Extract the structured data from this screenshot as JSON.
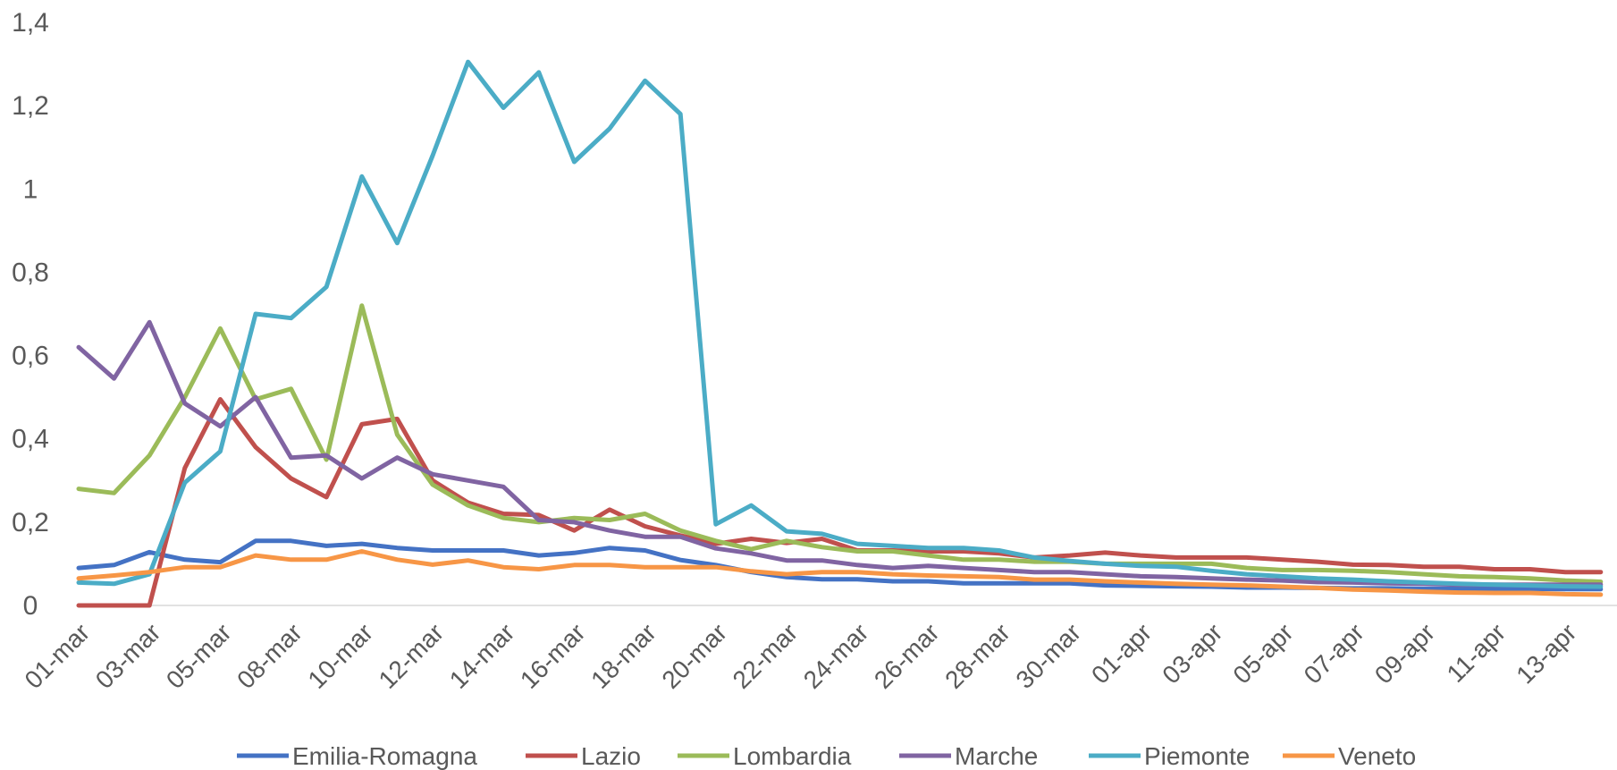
{
  "chart_data": {
    "type": "line",
    "title": "",
    "xlabel": "",
    "ylabel": "",
    "ylim": [
      0,
      1.4
    ],
    "yticks": [
      "0",
      "0,2",
      "0,4",
      "0,6",
      "0,8",
      "1",
      "1,2",
      "1,4"
    ],
    "grid": false,
    "legend_position": "bottom",
    "x": [
      "01-mar",
      "02-mar",
      "03-mar",
      "04-mar",
      "05-mar",
      "06-mar",
      "08-mar",
      "09-mar",
      "10-mar",
      "11-mar",
      "12-mar",
      "13-mar",
      "14-mar",
      "15-mar",
      "16-mar",
      "17-mar",
      "18-mar",
      "19-mar",
      "20-mar",
      "21-mar",
      "22-mar",
      "23-mar",
      "24-mar",
      "25-mar",
      "26-mar",
      "27-mar",
      "28-mar",
      "29-mar",
      "30-mar",
      "31-mar",
      "01-apr",
      "02-apr",
      "03-apr",
      "04-apr",
      "05-apr",
      "06-apr",
      "07-apr",
      "08-apr",
      "09-apr",
      "10-apr",
      "11-apr",
      "12-apr",
      "13-apr",
      "14-apr"
    ],
    "x_tick_labels": [
      "01-mar",
      "03-mar",
      "05-mar",
      "08-mar",
      "10-mar",
      "12-mar",
      "14-mar",
      "16-mar",
      "18-mar",
      "20-mar",
      "22-mar",
      "24-mar",
      "26-mar",
      "28-mar",
      "30-mar",
      "01-apr",
      "03-apr",
      "05-apr",
      "07-apr",
      "09-apr",
      "11-apr",
      "13-apr"
    ],
    "series": [
      {
        "name": "Emilia-Romagna",
        "color": "#4472C4",
        "values": [
          0.09,
          0.097,
          0.128,
          0.11,
          0.104,
          0.155,
          0.155,
          0.143,
          0.148,
          0.138,
          0.132,
          0.132,
          0.132,
          0.12,
          0.126,
          0.138,
          0.132,
          0.109,
          0.097,
          0.08,
          0.068,
          0.063,
          0.063,
          0.058,
          0.058,
          0.053,
          0.053,
          0.053,
          0.053,
          0.048,
          0.047,
          0.046,
          0.045,
          0.043,
          0.043,
          0.042,
          0.041,
          0.041,
          0.04,
          0.04,
          0.04,
          0.04,
          0.039,
          0.039
        ]
      },
      {
        "name": "Lazio",
        "color": "#C0504D",
        "values": [
          0,
          0,
          0,
          0.33,
          0.495,
          0.38,
          0.305,
          0.26,
          0.435,
          0.448,
          0.3,
          0.247,
          0.22,
          0.217,
          0.18,
          0.23,
          0.19,
          0.168,
          0.148,
          0.16,
          0.15,
          0.16,
          0.132,
          0.132,
          0.13,
          0.13,
          0.125,
          0.115,
          0.12,
          0.127,
          0.12,
          0.115,
          0.115,
          0.115,
          0.11,
          0.105,
          0.098,
          0.097,
          0.093,
          0.093,
          0.087,
          0.087,
          0.08,
          0.08
        ]
      },
      {
        "name": "Lombardia",
        "color": "#9BBB59",
        "values": [
          0.28,
          0.27,
          0.36,
          0.5,
          0.665,
          0.495,
          0.52,
          0.35,
          0.72,
          0.41,
          0.29,
          0.24,
          0.21,
          0.2,
          0.21,
          0.205,
          0.22,
          0.18,
          0.155,
          0.135,
          0.155,
          0.14,
          0.13,
          0.13,
          0.12,
          0.11,
          0.11,
          0.105,
          0.105,
          0.1,
          0.1,
          0.1,
          0.1,
          0.09,
          0.085,
          0.085,
          0.083,
          0.08,
          0.075,
          0.07,
          0.068,
          0.065,
          0.06,
          0.057
        ]
      },
      {
        "name": "Marche",
        "color": "#8064A2",
        "values": [
          0.62,
          0.545,
          0.68,
          0.485,
          0.43,
          0.5,
          0.355,
          0.36,
          0.305,
          0.355,
          0.315,
          0.3,
          0.285,
          0.205,
          0.2,
          0.18,
          0.165,
          0.165,
          0.137,
          0.125,
          0.108,
          0.108,
          0.097,
          0.09,
          0.095,
          0.09,
          0.085,
          0.08,
          0.08,
          0.075,
          0.07,
          0.068,
          0.065,
          0.062,
          0.06,
          0.056,
          0.055,
          0.053,
          0.052,
          0.05,
          0.05,
          0.05,
          0.05,
          0.05
        ]
      },
      {
        "name": "Piemonte",
        "color": "#4BACC6",
        "values": [
          0.055,
          0.052,
          0.075,
          0.295,
          0.37,
          0.7,
          0.69,
          0.765,
          1.03,
          0.87,
          1.08,
          1.305,
          1.195,
          1.28,
          1.065,
          1.145,
          1.26,
          1.18,
          0.195,
          0.24,
          0.178,
          0.172,
          0.148,
          0.143,
          0.138,
          0.138,
          0.132,
          0.115,
          0.107,
          0.1,
          0.095,
          0.093,
          0.083,
          0.075,
          0.07,
          0.065,
          0.062,
          0.058,
          0.055,
          0.052,
          0.05,
          0.048,
          0.046,
          0.045
        ]
      },
      {
        "name": "Veneto",
        "color": "#F79646",
        "values": [
          0.065,
          0.072,
          0.08,
          0.092,
          0.092,
          0.12,
          0.11,
          0.11,
          0.13,
          0.11,
          0.098,
          0.108,
          0.092,
          0.087,
          0.097,
          0.097,
          0.092,
          0.092,
          0.092,
          0.082,
          0.075,
          0.08,
          0.08,
          0.075,
          0.072,
          0.07,
          0.068,
          0.062,
          0.062,
          0.058,
          0.055,
          0.052,
          0.05,
          0.048,
          0.045,
          0.042,
          0.038,
          0.036,
          0.033,
          0.031,
          0.03,
          0.03,
          0.027,
          0.026
        ]
      }
    ]
  }
}
